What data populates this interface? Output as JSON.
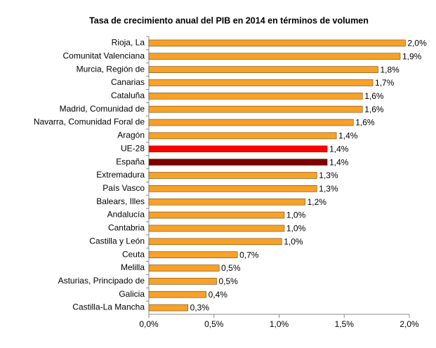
{
  "chart_data": {
    "type": "bar",
    "orientation": "horizontal",
    "title": "Tasa de crecimiento anual del PIB en 2014 en términos de volumen",
    "categories": [
      "Rioja, La",
      "Comunitat Valenciana",
      "Murcia, Región de",
      "Canarias",
      "Cataluña",
      "Madrid, Comunidad de",
      "Navarra, Comunidad Foral de",
      "Aragón",
      "UE-28",
      "España",
      "Extremadura",
      "País Vasco",
      "Balears, Illes",
      "Andalucía",
      "Cantabria",
      "Castilla y León",
      "Ceuta",
      "Melilla",
      "Asturias, Principado de",
      "Galicia",
      "Castilla-La Mancha"
    ],
    "values": [
      1.97,
      1.93,
      1.76,
      1.72,
      1.64,
      1.64,
      1.57,
      1.44,
      1.37,
      1.37,
      1.29,
      1.29,
      1.2,
      1.04,
      1.04,
      1.02,
      0.68,
      0.54,
      0.52,
      0.44,
      0.3
    ],
    "value_labels": [
      "2,0%",
      "1,9%",
      "1,8%",
      "1,7%",
      "1,6%",
      "1,6%",
      "1,6%",
      "1,4%",
      "1,4%",
      "1,4%",
      "1,3%",
      "1,3%",
      "1,2%",
      "1,0%",
      "1,0%",
      "1,0%",
      "0,7%",
      "0,5%",
      "0,5%",
      "0,4%",
      "0,3%"
    ],
    "colors": [
      "#f7a128",
      "#f7a128",
      "#f7a128",
      "#f7a128",
      "#f7a128",
      "#f7a128",
      "#f7a128",
      "#f7a128",
      "#ff0000",
      "#7f0000",
      "#f7a128",
      "#f7a128",
      "#f7a128",
      "#f7a128",
      "#f7a128",
      "#f7a128",
      "#f7a128",
      "#f7a128",
      "#f7a128",
      "#f7a128",
      "#f7a128"
    ],
    "xlim": [
      0,
      2
    ],
    "xticks": [
      {
        "value": 0,
        "label": "0,0%"
      },
      {
        "value": 0.5,
        "label": "0,5%"
      },
      {
        "value": 1,
        "label": "1,0%"
      },
      {
        "value": 1.5,
        "label": "1,5%"
      },
      {
        "value": 2,
        "label": "2,0%"
      }
    ]
  }
}
